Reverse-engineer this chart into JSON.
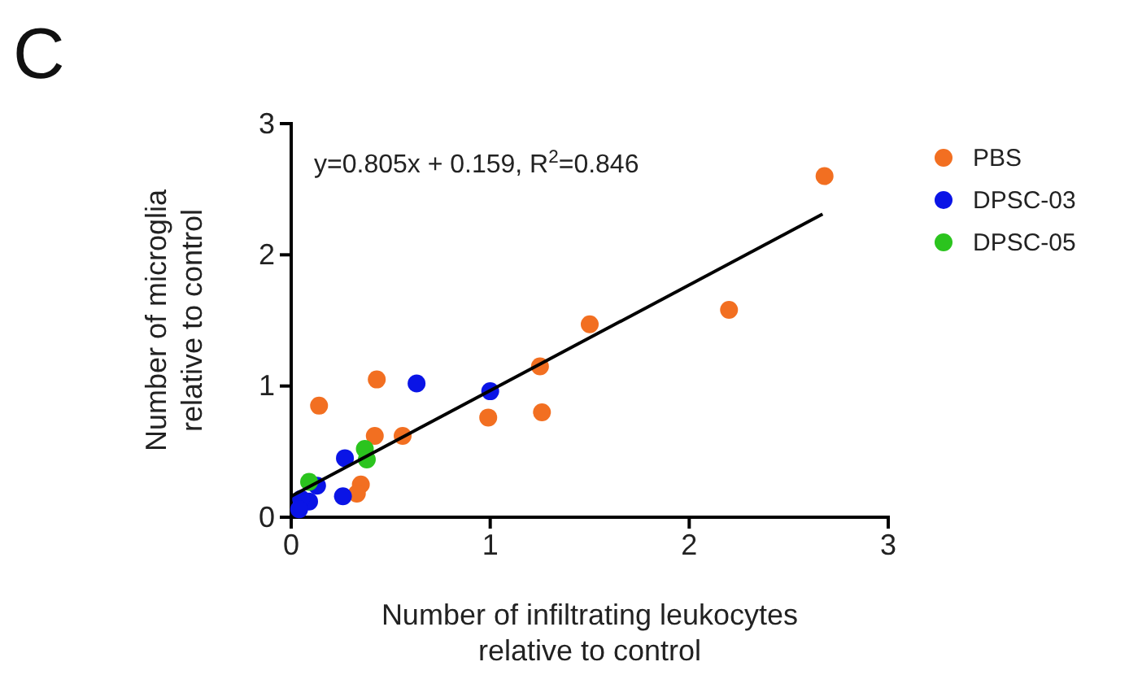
{
  "chart_data": {
    "type": "scatter",
    "xlabel": "Number of infiltrating leukocytes\nrelative to control",
    "ylabel": "Number of microglia\nrelative to control",
    "annotations": [
      "C",
      "y=0.805x + 0.159, R$^{2}$=0.846"
    ],
    "xlim": [
      0,
      3
    ],
    "ylim": [
      0,
      3
    ],
    "xticks": [
      0,
      1,
      2,
      3
    ],
    "yticks": [
      0,
      1,
      2,
      3
    ],
    "grid": false,
    "legend": "top right",
    "marker": "circle",
    "series": [
      {
        "name": "PBS",
        "color": "#f26f21",
        "x": [
          0.14,
          0.43,
          0.42,
          0.56,
          0.35,
          0.33,
          0.99,
          1.25,
          1.26,
          1.5,
          2.2,
          2.68
        ],
        "values": [
          0.85,
          1.05,
          0.62,
          0.62,
          0.25,
          0.18,
          0.76,
          1.15,
          0.8,
          1.47,
          1.58,
          2.6
        ]
      },
      {
        "name": "DPSC-03",
        "color": "#0a14e6",
        "x": [
          0.63,
          1.0,
          0.27,
          0.26,
          0.13,
          0.09,
          0.05,
          0.04
        ],
        "values": [
          1.02,
          0.96,
          0.45,
          0.16,
          0.24,
          0.12,
          0.14,
          0.06
        ]
      },
      {
        "name": "DPSC-05",
        "color": "#2bc41e",
        "x": [
          0.37,
          0.38,
          0.09
        ],
        "values": [
          0.52,
          0.44,
          0.27
        ]
      },
      {
        "type": "line",
        "color": "#000000",
        "x": [
          0,
          2.67
        ],
        "values": [
          0.16,
          2.31
        ],
        "marker": "none",
        "line_style": "solid"
      }
    ]
  }
}
